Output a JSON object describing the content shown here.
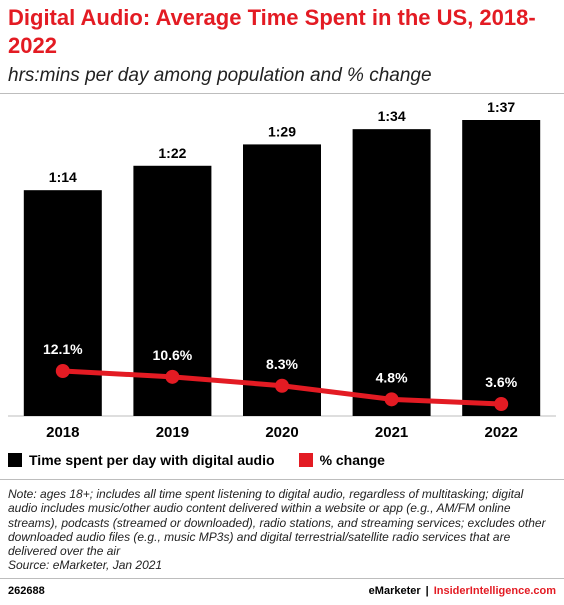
{
  "title": "Digital Audio: Average Time Spent in the US, 2018-2022",
  "subtitle": "hrs:mins per day among population and % change",
  "chart_data": {
    "type": "bar",
    "categories": [
      "2018",
      "2019",
      "2020",
      "2021",
      "2022"
    ],
    "series": [
      {
        "name": "Time spent per day with digital audio",
        "type": "bar",
        "values_minutes": [
          74,
          82,
          89,
          94,
          97
        ],
        "labels": [
          "1:14",
          "1:22",
          "1:29",
          "1:34",
          "1:37"
        ]
      },
      {
        "name": "% change",
        "type": "line",
        "values": [
          12.1,
          10.6,
          8.3,
          4.8,
          3.6
        ],
        "labels": [
          "12.1%",
          "10.6%",
          "8.3%",
          "4.8%",
          "3.6%"
        ]
      }
    ],
    "colors": {
      "bar": "#000000",
      "line": "#e31b23",
      "title": "#e31b23"
    },
    "grid": false
  },
  "legend": {
    "bars": "Time spent per day with digital audio",
    "line": "% change"
  },
  "note": "Note: ages 18+; includes all time spent listening to digital audio, regardless of multitasking; digital audio includes music/other audio content delivered within a website or app (e.g., AM/FM online streams), podcasts (streamed or downloaded), radio stations, and streaming services; excludes other downloaded audio files (e.g., music MP3s) and digital terrestrial/satellite radio services that are delivered over the air",
  "source": "Source: eMarketer, Jan 2021",
  "footer": {
    "id": "262688",
    "brand1": "eMarketer",
    "separator": "|",
    "brand2": "InsiderIntelligence.com"
  }
}
